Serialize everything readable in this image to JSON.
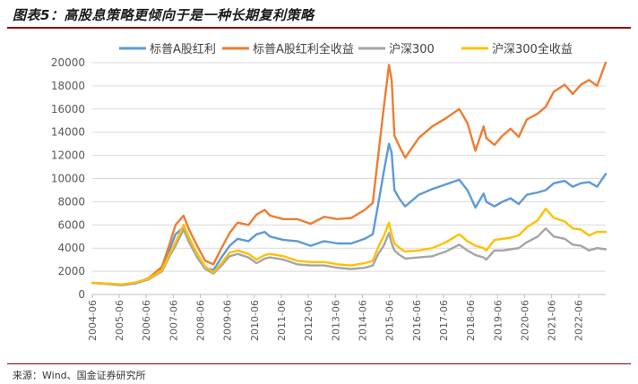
{
  "title": "图表5：高股息策略更倾向于是一种长期复利策略",
  "source": "来源：Wind、国金证券研究所",
  "colors": {
    "title_rule": "#8b0000",
    "series": [
      "#5b9bd5",
      "#ed7d31",
      "#a5a5a5",
      "#ffc000"
    ]
  },
  "chart_data": {
    "type": "line",
    "title": "",
    "xlabel": "",
    "ylabel": "",
    "ylim": [
      0,
      20000
    ],
    "yticks": [
      0,
      2000,
      4000,
      6000,
      8000,
      10000,
      12000,
      14000,
      16000,
      18000,
      20000
    ],
    "xlim": [
      2004.42,
      2023.42
    ],
    "xticks": [
      "2004-06",
      "2005-06",
      "2006-06",
      "2007-06",
      "2008-06",
      "2009-06",
      "2010-06",
      "2011-06",
      "2012-06",
      "2013-06",
      "2014-06",
      "2015-06",
      "2016-06",
      "2017-06",
      "2018-06",
      "2019-06",
      "2020-06",
      "2021-06",
      "2022-06"
    ],
    "legend_position": "top",
    "series": [
      {
        "name": "标普A股红利",
        "x": [
          2004.42,
          2005.0,
          2005.5,
          2006.0,
          2006.5,
          2007.0,
          2007.3,
          2007.5,
          2007.8,
          2008.0,
          2008.3,
          2008.6,
          2008.9,
          2009.2,
          2009.5,
          2009.8,
          2010.2,
          2010.5,
          2010.8,
          2011.0,
          2011.5,
          2012.0,
          2012.5,
          2013.0,
          2013.5,
          2014.0,
          2014.5,
          2014.8,
          2015.0,
          2015.2,
          2015.4,
          2015.5,
          2015.6,
          2015.8,
          2016.0,
          2016.5,
          2017.0,
          2017.5,
          2018.0,
          2018.3,
          2018.6,
          2018.9,
          2019.0,
          2019.3,
          2019.6,
          2019.9,
          2020.2,
          2020.5,
          2020.9,
          2021.2,
          2021.5,
          2021.9,
          2022.2,
          2022.5,
          2022.8,
          2023.1,
          2023.42
        ],
        "values": [
          1000,
          900,
          800,
          950,
          1300,
          2200,
          4000,
          5200,
          5800,
          4800,
          3500,
          2300,
          2100,
          3200,
          4200,
          4800,
          4600,
          5200,
          5400,
          5000,
          4700,
          4600,
          4200,
          4600,
          4400,
          4400,
          4800,
          5200,
          7800,
          10500,
          13000,
          12200,
          9000,
          8200,
          7600,
          8600,
          9100,
          9500,
          9900,
          9000,
          7500,
          8700,
          8000,
          7600,
          8000,
          8300,
          7800,
          8600,
          8800,
          9000,
          9600,
          9800,
          9300,
          9600,
          9700,
          9300,
          10400
        ]
      },
      {
        "name": "标普A股红利全收益",
        "x": [
          2004.42,
          2005.0,
          2005.5,
          2006.0,
          2006.5,
          2007.0,
          2007.3,
          2007.5,
          2007.8,
          2008.0,
          2008.3,
          2008.6,
          2008.9,
          2009.2,
          2009.5,
          2009.8,
          2010.2,
          2010.5,
          2010.8,
          2011.0,
          2011.5,
          2012.0,
          2012.5,
          2013.0,
          2013.5,
          2014.0,
          2014.5,
          2014.8,
          2015.0,
          2015.2,
          2015.4,
          2015.5,
          2015.6,
          2015.8,
          2016.0,
          2016.5,
          2017.0,
          2017.5,
          2018.0,
          2018.3,
          2018.6,
          2018.9,
          2019.0,
          2019.3,
          2019.6,
          2019.9,
          2020.2,
          2020.5,
          2020.9,
          2021.2,
          2021.5,
          2021.9,
          2022.2,
          2022.5,
          2022.8,
          2023.1,
          2023.42
        ],
        "values": [
          1000,
          920,
          830,
          1000,
          1400,
          2400,
          4500,
          6000,
          6800,
          5600,
          4200,
          2900,
          2600,
          4000,
          5300,
          6200,
          6000,
          6900,
          7300,
          6800,
          6500,
          6500,
          6100,
          6700,
          6500,
          6600,
          7300,
          7900,
          12000,
          16000,
          19800,
          18500,
          13700,
          12700,
          11800,
          13500,
          14500,
          15200,
          16000,
          14800,
          12400,
          14500,
          13500,
          12900,
          13700,
          14300,
          13600,
          15100,
          15600,
          16200,
          17500,
          18100,
          17300,
          18100,
          18500,
          18000,
          20000
        ]
      },
      {
        "name": "沪深300",
        "x": [
          2004.42,
          2005.0,
          2005.5,
          2006.0,
          2006.5,
          2007.0,
          2007.3,
          2007.5,
          2007.8,
          2008.0,
          2008.3,
          2008.6,
          2008.9,
          2009.2,
          2009.5,
          2009.8,
          2010.2,
          2010.5,
          2010.8,
          2011.0,
          2011.5,
          2012.0,
          2012.5,
          2013.0,
          2013.5,
          2014.0,
          2014.5,
          2014.8,
          2015.0,
          2015.2,
          2015.4,
          2015.5,
          2015.6,
          2015.8,
          2016.0,
          2016.5,
          2017.0,
          2017.5,
          2018.0,
          2018.3,
          2018.6,
          2018.9,
          2019.0,
          2019.3,
          2019.6,
          2019.9,
          2020.2,
          2020.5,
          2020.9,
          2021.2,
          2021.5,
          2021.9,
          2022.2,
          2022.5,
          2022.8,
          2023.1,
          2023.42
        ],
        "values": [
          1000,
          930,
          850,
          1000,
          1300,
          2000,
          3400,
          4200,
          5600,
          4500,
          3200,
          2200,
          1800,
          2500,
          3300,
          3500,
          3200,
          2700,
          3100,
          3200,
          3000,
          2600,
          2500,
          2500,
          2300,
          2200,
          2300,
          2500,
          3500,
          4200,
          5300,
          4400,
          3800,
          3400,
          3100,
          3200,
          3300,
          3700,
          4300,
          3800,
          3400,
          3200,
          3000,
          3800,
          3800,
          3900,
          4000,
          4500,
          5000,
          5700,
          5000,
          4800,
          4300,
          4200,
          3800,
          4000,
          3900
        ]
      },
      {
        "name": "沪深300全收益",
        "x": [
          2004.42,
          2005.0,
          2005.5,
          2006.0,
          2006.5,
          2007.0,
          2007.3,
          2007.5,
          2007.8,
          2008.0,
          2008.3,
          2008.6,
          2008.9,
          2009.2,
          2009.5,
          2009.8,
          2010.2,
          2010.5,
          2010.8,
          2011.0,
          2011.5,
          2012.0,
          2012.5,
          2013.0,
          2013.5,
          2014.0,
          2014.5,
          2014.8,
          2015.0,
          2015.2,
          2015.4,
          2015.5,
          2015.6,
          2015.8,
          2016.0,
          2016.5,
          2017.0,
          2017.5,
          2018.0,
          2018.3,
          2018.6,
          2018.9,
          2019.0,
          2019.3,
          2019.6,
          2019.9,
          2020.2,
          2020.5,
          2020.9,
          2021.2,
          2021.5,
          2021.9,
          2022.2,
          2022.5,
          2022.8,
          2023.1,
          2023.42
        ],
        "values": [
          1000,
          940,
          870,
          1030,
          1350,
          2100,
          3600,
          4500,
          6000,
          4900,
          3500,
          2400,
          1900,
          2700,
          3600,
          3800,
          3500,
          3000,
          3400,
          3500,
          3300,
          2900,
          2800,
          2800,
          2600,
          2500,
          2700,
          2900,
          4100,
          5000,
          6200,
          5200,
          4400,
          4000,
          3700,
          3800,
          4000,
          4500,
          5200,
          4600,
          4200,
          4000,
          3800,
          4700,
          4800,
          4900,
          5100,
          5800,
          6400,
          7400,
          6600,
          6300,
          5700,
          5600,
          5100,
          5400,
          5400
        ]
      }
    ]
  }
}
